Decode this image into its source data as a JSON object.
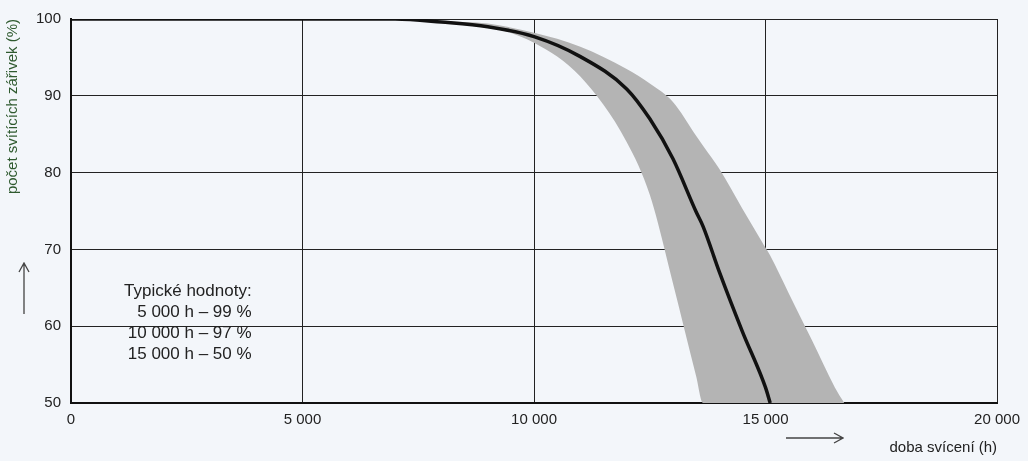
{
  "chart_data": {
    "type": "line",
    "xlabel": "doba svícení (h)",
    "ylabel": "počet svítících zářivek (%)",
    "x": [
      0,
      7000,
      8000,
      9000,
      10000,
      11000,
      12000,
      12500,
      13000,
      13500,
      13650,
      14000,
      14500,
      15000,
      15100,
      15500,
      16000,
      16500,
      16700
    ],
    "series": [
      {
        "color": "#111111",
        "values": [
          100,
          100,
          99.6,
          99,
          97.7,
          95.1,
          90.9,
          87,
          81.8,
          74.9,
          73,
          67.1,
          59.3,
          52,
          50,
          null,
          null,
          null,
          null
        ],
        "lower": [
          100,
          100,
          99.5,
          99,
          96.9,
          92.5,
          84,
          77.1,
          65.6,
          53.5,
          50,
          50,
          50,
          50,
          50,
          50,
          50,
          50,
          50
        ],
        "upper": [
          100,
          100,
          99.7,
          99.4,
          98.2,
          96.4,
          93.5,
          91.6,
          89.2,
          84.8,
          83.5,
          80.5,
          75.3,
          70.2,
          69.2,
          64.3,
          58.2,
          52,
          50
        ]
      }
    ],
    "xlim": [
      0,
      20000
    ],
    "xticks": [
      0,
      {
        "value": 5000,
        "label": "5 000"
      },
      {
        "value": 10000,
        "label": "10 000"
      },
      {
        "value": 15000,
        "label": "15 000"
      },
      {
        "value": 20000,
        "label": "20 000"
      }
    ],
    "ylim": [
      50,
      100
    ],
    "yticks": [
      50,
      60,
      70,
      80,
      90,
      100
    ],
    "grid": true,
    "legend": false,
    "marker": "none",
    "line_style": "solid",
    "annotations": [
      "Typické hodnoty:",
      "5 000 h – 99 %",
      "10 000 h – 97 %",
      "15 000 h – 50 %"
    ]
  }
}
